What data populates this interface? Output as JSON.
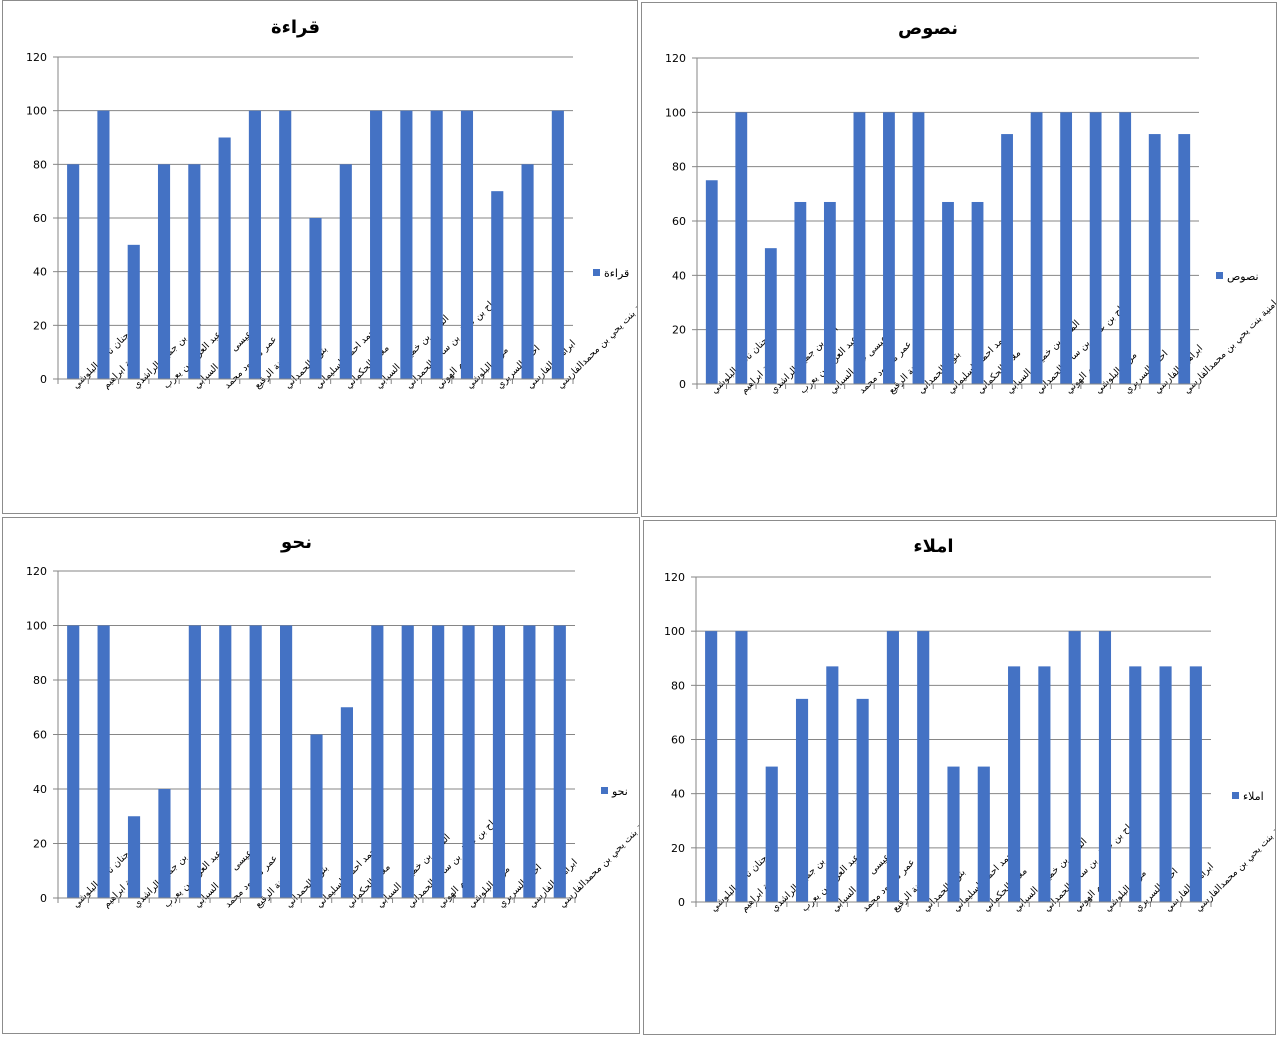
{
  "students": [
    "جنان ناظر البلوشي",
    "جنة ابراهيم",
    "انس بن جميل الراشدي",
    "عبد العزيز بن يعرب",
    "عيسى حمد السيابي",
    "عبير عمر محمود محمد",
    "امنة الرقيع",
    "بتول الحمداني",
    "محمد احمد السليماني",
    "ملاك الحكماني",
    "المويد بن خميس السيابي",
    "جراح بن عادل بن سالم الحمداني",
    "تميم الهوتي",
    "مريم البلوشي",
    "احمد السريري",
    "ابراهيم الفارسي",
    "امنية بنت يحي بن محمدالفارسي"
  ],
  "colors": {
    "bar": "#4472c4",
    "grid": "#868686",
    "axis": "#868686"
  },
  "chart_data": [
    {
      "type": "bar",
      "title": "قراءة",
      "legend": "قراءة",
      "legend_position": "right",
      "ylim": [
        0,
        120
      ],
      "yticks": [
        "0",
        "20",
        "40",
        "60",
        "80",
        "100",
        "120"
      ],
      "values": [
        80,
        100,
        50,
        80,
        80,
        90,
        100,
        100,
        60,
        80,
        100,
        100,
        100,
        100,
        70,
        80,
        100
      ]
    },
    {
      "type": "bar",
      "title": "نصوص",
      "legend": "نصوص",
      "legend_position": "right",
      "ylim": [
        0,
        120
      ],
      "yticks": [
        "0",
        "20",
        "40",
        "60",
        "80",
        "100",
        "120"
      ],
      "values": [
        75,
        100,
        50,
        67,
        67,
        100,
        100,
        100,
        67,
        67,
        92,
        100,
        100,
        100,
        100,
        92,
        92
      ]
    },
    {
      "type": "bar",
      "title": "نحو",
      "legend": "نحو",
      "legend_position": "right",
      "ylim": [
        0,
        120
      ],
      "yticks": [
        "0",
        "20",
        "40",
        "60",
        "80",
        "100",
        "120"
      ],
      "values": [
        100,
        100,
        30,
        40,
        100,
        100,
        100,
        100,
        60,
        70,
        100,
        100,
        100,
        100,
        100,
        100,
        100
      ]
    },
    {
      "type": "bar",
      "title": "املاء",
      "legend": "املاء",
      "legend_position": "right",
      "ylim": [
        0,
        120
      ],
      "yticks": [
        "0",
        "20",
        "40",
        "60",
        "80",
        "100",
        "120"
      ],
      "values": [
        100,
        100,
        50,
        75,
        87,
        75,
        100,
        100,
        50,
        50,
        87,
        87,
        100,
        100,
        87,
        87,
        87
      ]
    }
  ]
}
